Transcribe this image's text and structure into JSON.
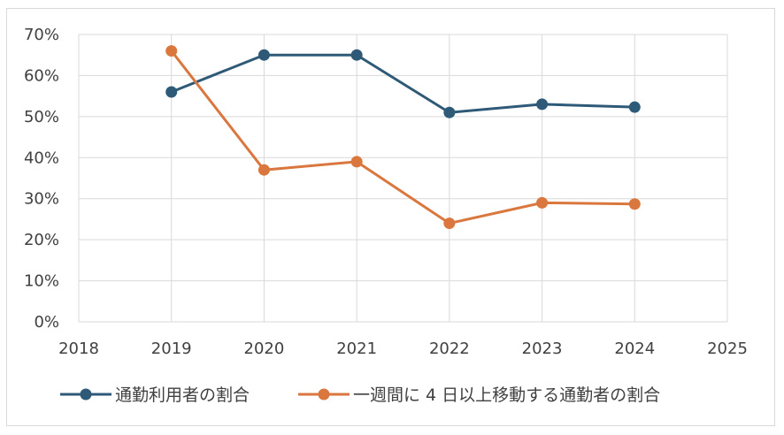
{
  "chart_data": {
    "type": "line",
    "xlim": [
      2018,
      2025
    ],
    "ylim": [
      0,
      0.7
    ],
    "x_ticks": [
      "2018",
      "2019",
      "2020",
      "2021",
      "2022",
      "2023",
      "2024",
      "2025"
    ],
    "y_ticks": [
      "0%",
      "10%",
      "20%",
      "30%",
      "40%",
      "50%",
      "60%",
      "70%"
    ],
    "grid": true,
    "legend_position": "bottom",
    "series": [
      {
        "name": "通勤利用者の割合",
        "color": "#2e5a78",
        "x": [
          2019,
          2020,
          2021,
          2022,
          2023,
          2024
        ],
        "values": [
          0.56,
          0.65,
          0.65,
          0.51,
          0.53,
          0.523
        ]
      },
      {
        "name": "一週間に 4 日以上移動する通勤者の割合",
        "color": "#d9773f",
        "x": [
          2019,
          2020,
          2021,
          2022,
          2023,
          2024
        ],
        "values": [
          0.66,
          0.37,
          0.39,
          0.24,
          0.29,
          0.287
        ]
      }
    ]
  }
}
